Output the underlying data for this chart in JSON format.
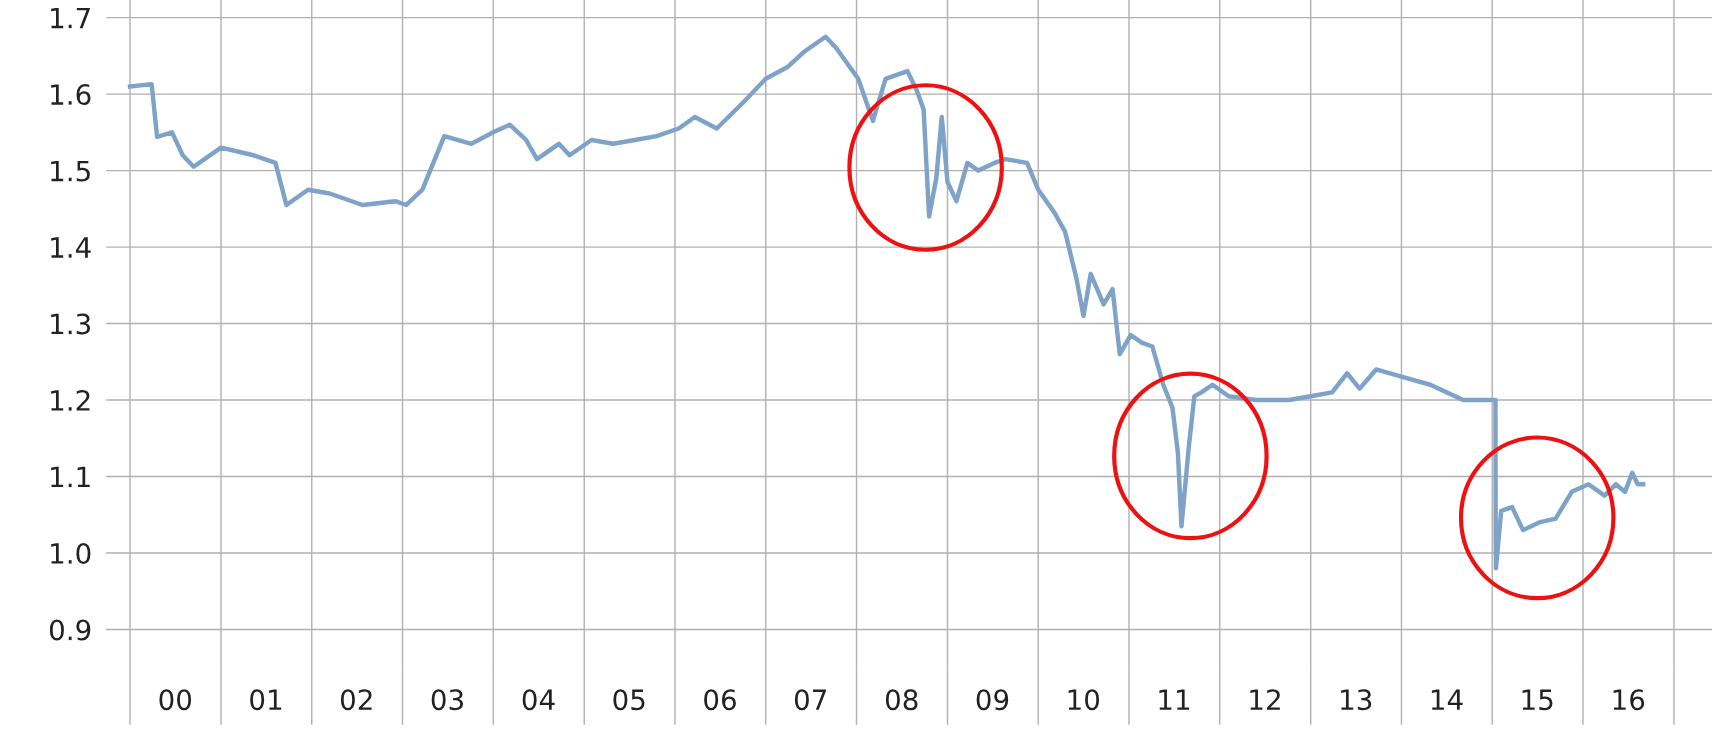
{
  "chart_data": {
    "type": "line",
    "x": [
      "2000-01-01",
      "2000-03-28",
      "2000-04-19",
      "2000-06-18",
      "2000-07-31",
      "2000-09-13",
      "2001-01-01",
      "2001-05-12",
      "2001-08-08",
      "2001-09-21",
      "2001-12-17",
      "2002-03-14",
      "2002-07-24",
      "2002-12-03",
      "2003-01-16",
      "2003-03-22",
      "2003-05-05",
      "2003-06-18",
      "2003-10-05",
      "2004-01-01",
      "2004-03-07",
      "2004-05-12",
      "2004-06-25",
      "2004-09-21",
      "2004-11-03",
      "2005-01-30",
      "2005-04-27",
      "2005-07-24",
      "2005-10-19",
      "2006-01-16",
      "2006-03-22",
      "2006-06-18",
      "2006-10-05",
      "2007-01-01",
      "2007-03-28",
      "2007-06-03",
      "2007-08-30",
      "2007-10-12",
      "2008-01-08",
      "2008-03-07",
      "2008-04-27",
      "2008-07-24",
      "2008-08-30",
      "2008-09-27",
      "2008-10-19",
      "2008-11-17",
      "2008-12-09",
      "2009-01-01",
      "2009-02-06",
      "2009-03-22",
      "2009-05-05",
      "2009-07-09",
      "2009-08-22",
      "2009-11-17",
      "2010-01-01",
      "2010-03-07",
      "2010-04-19",
      "2010-06-03",
      "2010-07-02",
      "2010-07-31",
      "2010-09-21",
      "2010-10-27",
      "2010-11-25",
      "2011-01-08",
      "2011-02-21",
      "2011-04-05",
      "2011-05-19",
      "2011-06-25",
      "2011-07-17",
      "2011-07-31",
      "2011-08-30",
      "2011-09-21",
      "2011-10-19",
      "2011-12-03",
      "2012-02-06",
      "2012-05-27",
      "2012-10-05",
      "2013-01-01",
      "2013-03-28",
      "2013-05-27",
      "2013-07-17",
      "2013-09-21",
      "2014-01-08",
      "2014-04-27",
      "2014-09-06",
      "2015-01-14",
      "2015-01-15",
      "2015-01-16",
      "2015-02-06",
      "2015-03-22",
      "2015-05-05",
      "2015-07-09",
      "2015-09-13",
      "2015-11-17",
      "2016-01-23",
      "2016-03-28",
      "2016-05-12",
      "2016-06-18",
      "2016-07-17",
      "2016-08-08",
      "2016-08-30"
    ],
    "series": [
      {
        "color": "#7fa3c8",
        "values": [
          1.61,
          1.613,
          1.544,
          1.55,
          1.52,
          1.505,
          1.53,
          1.52,
          1.51,
          1.455,
          1.475,
          1.47,
          1.455,
          1.46,
          1.455,
          1.475,
          1.51,
          1.545,
          1.535,
          1.55,
          1.56,
          1.54,
          1.515,
          1.535,
          1.52,
          1.54,
          1.535,
          1.54,
          1.545,
          1.555,
          1.57,
          1.555,
          1.59,
          1.62,
          1.635,
          1.655,
          1.675,
          1.66,
          1.62,
          1.565,
          1.62,
          1.63,
          1.605,
          1.58,
          1.44,
          1.49,
          1.57,
          1.485,
          1.46,
          1.51,
          1.5,
          1.51,
          1.515,
          1.51,
          1.475,
          1.445,
          1.42,
          1.36,
          1.31,
          1.365,
          1.325,
          1.345,
          1.26,
          1.285,
          1.275,
          1.27,
          1.22,
          1.19,
          1.13,
          1.035,
          1.14,
          1.205,
          1.21,
          1.22,
          1.205,
          1.2,
          1.2,
          1.205,
          1.21,
          1.235,
          1.215,
          1.24,
          1.23,
          1.22,
          1.2,
          1.2,
          1.02,
          0.98,
          1.055,
          1.06,
          1.03,
          1.04,
          1.045,
          1.08,
          1.09,
          1.075,
          1.09,
          1.08,
          1.105,
          1.09,
          1.09
        ]
      }
    ],
    "xlim": [
      "1999-09-27",
      "2017-06-03"
    ],
    "xticks": [
      {
        "value": "2000-01-01",
        "label": null
      },
      {
        "value": "2001-01-01",
        "label": null
      },
      {
        "value": "2002-01-01",
        "label": null
      },
      {
        "value": "2003-01-01",
        "label": null
      },
      {
        "value": "2004-01-01",
        "label": null
      },
      {
        "value": "2005-01-01",
        "label": null
      },
      {
        "value": "2006-01-01",
        "label": null
      },
      {
        "value": "2007-01-01",
        "label": null
      },
      {
        "value": "2008-01-01",
        "label": null
      },
      {
        "value": "2009-01-01",
        "label": null
      },
      {
        "value": "2010-01-01",
        "label": null
      },
      {
        "value": "2011-01-01",
        "label": null
      },
      {
        "value": "2012-01-01",
        "label": null
      },
      {
        "value": "2013-01-01",
        "label": null
      },
      {
        "value": "2014-01-01",
        "label": null
      },
      {
        "value": "2015-01-01",
        "label": null
      },
      {
        "value": "2016-01-01",
        "label": null
      },
      {
        "value": "2017-01-01",
        "label": null
      },
      {
        "value": "2000-07-01",
        "label": "00"
      },
      {
        "value": "2001-07-01",
        "label": "01"
      },
      {
        "value": "2002-07-01",
        "label": "02"
      },
      {
        "value": "2003-07-01",
        "label": "03"
      },
      {
        "value": "2004-07-01",
        "label": "04"
      },
      {
        "value": "2005-07-01",
        "label": "05"
      },
      {
        "value": "2006-07-01",
        "label": "06"
      },
      {
        "value": "2007-07-01",
        "label": "07"
      },
      {
        "value": "2008-07-01",
        "label": "08"
      },
      {
        "value": "2009-07-01",
        "label": "09"
      },
      {
        "value": "2010-07-01",
        "label": "10"
      },
      {
        "value": "2011-07-01",
        "label": "11"
      },
      {
        "value": "2012-07-01",
        "label": "12"
      },
      {
        "value": "2013-07-01",
        "label": "13"
      },
      {
        "value": "2014-07-01",
        "label": "14"
      },
      {
        "value": "2015-07-01",
        "label": "15"
      },
      {
        "value": "2016-07-01",
        "label": "16"
      }
    ],
    "ylim": [
      0.848,
      1.723
    ],
    "yticks": [
      {
        "value": 0.9,
        "label": "0.9"
      },
      {
        "value": 1.0,
        "label": "1.0"
      },
      {
        "value": 1.1,
        "label": "1.1"
      },
      {
        "value": 1.2,
        "label": "1.2"
      },
      {
        "value": 1.3,
        "label": "1.3"
      },
      {
        "value": 1.4,
        "label": "1.4"
      },
      {
        "value": 1.5,
        "label": "1.5"
      },
      {
        "value": 1.6,
        "label": "1.6"
      },
      {
        "value": 1.7,
        "label": "1.7"
      }
    ],
    "grid": true,
    "marker": "none",
    "line_style": "solid"
  }
}
